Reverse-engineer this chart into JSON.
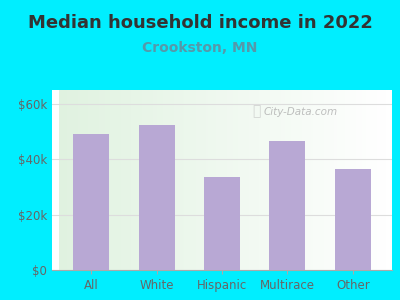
{
  "title": "Median household income in 2022",
  "subtitle": "Crookston, MN",
  "categories": [
    "All",
    "White",
    "Hispanic",
    "Multirace",
    "Other"
  ],
  "values": [
    49000,
    52500,
    33500,
    46500,
    36500
  ],
  "bar_color": "#b8a8d4",
  "background_outer": "#00eeff",
  "background_inner_top": "#e8f5e8",
  "background_inner_bottom": "#f5fef8",
  "background_inner_right": "#f8f8ff",
  "title_color": "#333333",
  "subtitle_color": "#5599aa",
  "tick_label_color": "#666666",
  "gridline_color": "#dddddd",
  "ylim": [
    0,
    65000
  ],
  "yticks": [
    0,
    20000,
    40000,
    60000
  ],
  "ytick_labels": [
    "$0",
    "$20k",
    "$40k",
    "$60k"
  ],
  "watermark": "City-Data.com",
  "title_fontsize": 13,
  "subtitle_fontsize": 10,
  "tick_fontsize": 8.5,
  "bar_width": 0.55
}
